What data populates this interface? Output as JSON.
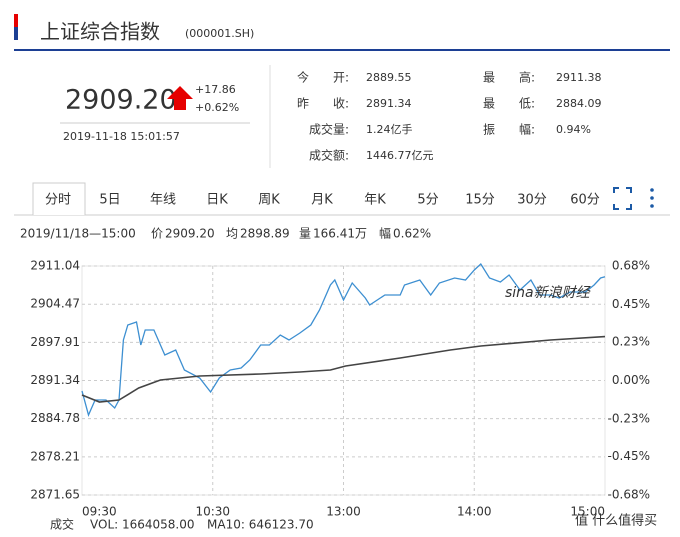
{
  "header": {
    "title": "上证综合指数",
    "code": "(000001.SH)"
  },
  "quote": {
    "price": "2909.20",
    "change": "+17.86",
    "change_pct": "+0.62%",
    "time": "2019-11-18 15:01:57"
  },
  "stats": [
    {
      "label": "今　　开:",
      "value": "2889.55",
      "color": "#119911"
    },
    {
      "label": "昨　　收:",
      "value": "2891.34",
      "color": "#333333"
    },
    {
      "label": "成交量:",
      "value": "1.24亿手",
      "color": "#333333"
    },
    {
      "label": "成交额:",
      "value": "1446.77亿元",
      "color": "#333333"
    },
    {
      "label": "最　　高:",
      "value": "2911.38",
      "color": "#e60000"
    },
    {
      "label": "最　　低:",
      "value": "2884.09",
      "color": "#119911"
    },
    {
      "label": "振　　幅:",
      "value": "0.94%",
      "color": "#333333"
    }
  ],
  "tabs": [
    "分时",
    "5日",
    "年线",
    "日K",
    "周K",
    "月K",
    "年K",
    "5分",
    "15分",
    "30分",
    "60分"
  ],
  "info": {
    "time": "2019/11/18—15:00",
    "price_label": "价",
    "price": "2909.20",
    "avg_label": "均",
    "avg": "2898.89",
    "vol_label": "量",
    "vol": "166.41万",
    "pct_label": "幅",
    "pct": "0.62%"
  },
  "chart_data": {
    "type": "line",
    "series": [
      {
        "color": "#3d8fd1",
        "x": [
          0,
          3,
          6,
          11,
          15,
          17,
          19,
          21,
          25,
          27,
          29,
          33,
          38,
          43,
          47,
          54,
          59,
          63,
          68,
          73,
          77,
          82,
          86,
          91,
          95,
          100,
          105,
          109,
          114,
          116,
          120,
          124,
          130,
          132,
          139,
          146,
          148,
          155,
          160,
          164,
          171,
          176,
          180,
          183,
          187,
          192,
          196,
          201,
          206,
          210,
          215,
          219,
          224,
          231,
          235,
          238,
          240
        ],
        "values": [
          2889.55,
          2885.41,
          2887.99,
          2887.99,
          2886.62,
          2887.99,
          2898.31,
          2900.89,
          2901.41,
          2897.45,
          2900.03,
          2900.03,
          2895.73,
          2896.59,
          2893.15,
          2891.78,
          2889.37,
          2891.78,
          2893.15,
          2893.5,
          2894.87,
          2897.45,
          2897.45,
          2899.17,
          2898.31,
          2899.52,
          2900.89,
          2903.47,
          2907.77,
          2908.63,
          2905.19,
          2908.12,
          2905.54,
          2904.33,
          2906.05,
          2906.05,
          2907.77,
          2908.63,
          2906.05,
          2908.12,
          2908.98,
          2908.63,
          2910.35,
          2911.38,
          2908.98,
          2908.29,
          2909.49,
          2906.91,
          2908.63,
          2906.05,
          2906.05,
          2905.54,
          2906.57,
          2906.57,
          2907.77,
          2908.98,
          2909.2
        ]
      },
      {
        "color": "#444444",
        "x": [
          0,
          8,
          17,
          26,
          36,
          54,
          82,
          100,
          114,
          121,
          146,
          169,
          183,
          215,
          240
        ],
        "values": [
          2888.85,
          2887.65,
          2887.99,
          2890.06,
          2891.43,
          2892.12,
          2892.47,
          2892.81,
          2893.15,
          2893.84,
          2895.22,
          2896.59,
          2897.28,
          2898.31,
          2898.89
        ]
      }
    ],
    "xlim": [
      0,
      240
    ],
    "xticks": [
      {
        "value": 0,
        "label": "09:30"
      },
      {
        "value": 60,
        "label": "10:30"
      },
      {
        "value": 120,
        "label": "13:00"
      },
      {
        "value": 180,
        "label": "14:00"
      },
      {
        "value": 240,
        "label": "15:00"
      }
    ],
    "ylim": [
      2871.65,
      2911.04
    ],
    "yticks": [
      2911.04,
      2904.47,
      2897.91,
      2891.34,
      2884.78,
      2878.21,
      2871.65
    ],
    "y2lim": [
      -0.68,
      0.68
    ],
    "y2ticks": [
      {
        "value": 0.68,
        "label": "0.68%"
      },
      {
        "value": 0.45,
        "label": "0.45%"
      },
      {
        "value": 0.23,
        "label": "0.23%"
      },
      {
        "value": 0,
        "label": "0.00%"
      },
      {
        "value": -0.23,
        "label": "-0.23%"
      },
      {
        "value": -0.45,
        "label": "-0.45%"
      },
      {
        "value": -0.68,
        "label": "-0.68%"
      }
    ],
    "grid": true,
    "up_color": "#e60000",
    "down_color": "#119911"
  },
  "footer": {
    "vol_label": "成交",
    "vol": "VOL: 1664058.00",
    "ma": "MA10: 646123.70"
  },
  "watermarks": [
    "sina新浪财经",
    "值 什么值得买"
  ]
}
